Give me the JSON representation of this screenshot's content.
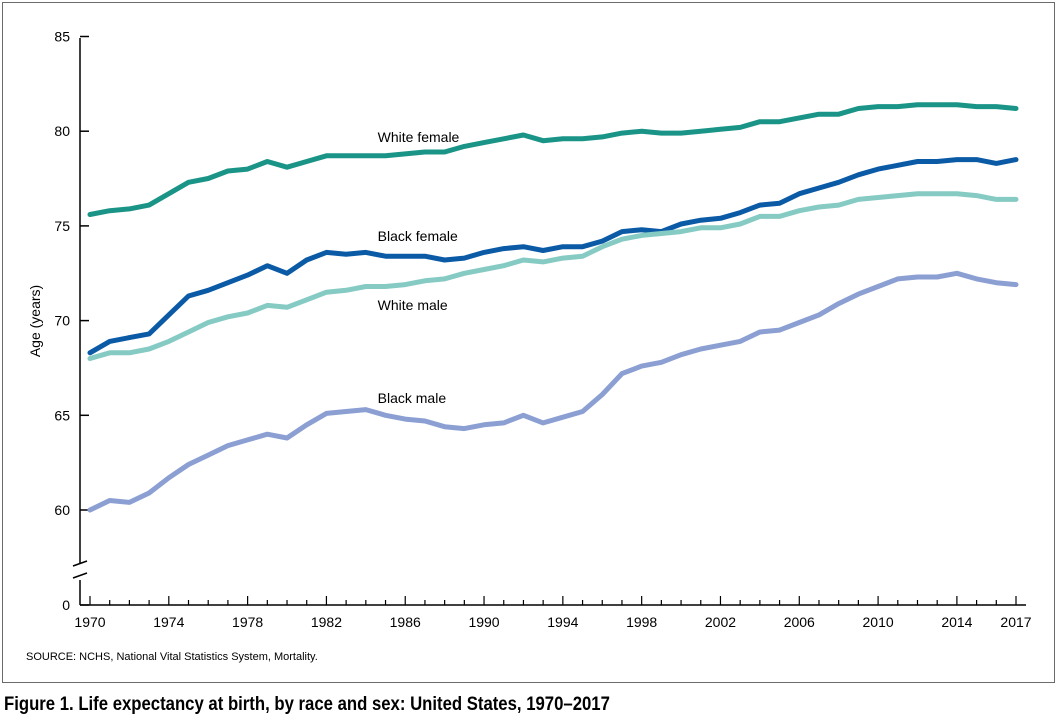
{
  "source_note": "SOURCE: NCHS, National Vital Statistics System, Mortality.",
  "caption": "Figure 1. Life expectancy at birth, by race and sex: United States, 1970–2017",
  "chart_data": {
    "type": "line",
    "title": "",
    "xlabel": "",
    "ylabel": "Age (years)",
    "x": [
      1970,
      1971,
      1972,
      1973,
      1974,
      1975,
      1976,
      1977,
      1978,
      1979,
      1980,
      1981,
      1982,
      1983,
      1984,
      1985,
      1986,
      1987,
      1988,
      1989,
      1990,
      1991,
      1992,
      1993,
      1994,
      1995,
      1996,
      1997,
      1998,
      1999,
      2000,
      2001,
      2002,
      2003,
      2004,
      2005,
      2006,
      2007,
      2008,
      2009,
      2010,
      2011,
      2012,
      2013,
      2014,
      2015,
      2016,
      2017
    ],
    "xticks": [
      "1970",
      "1974",
      "1978",
      "1982",
      "1986",
      "1990",
      "1994",
      "1998",
      "2002",
      "2006",
      "2010",
      "2014",
      "2017"
    ],
    "yticks": [
      "0",
      "60",
      "65",
      "70",
      "75",
      "80",
      "85"
    ],
    "ylim": [
      58.5,
      85
    ],
    "axis_break": true,
    "grid": false,
    "legend": "none (direct labels)",
    "series": [
      {
        "name": "White female",
        "color": "#1a9487",
        "values": [
          75.6,
          75.8,
          75.9,
          76.1,
          76.7,
          77.3,
          77.5,
          77.9,
          78.0,
          78.4,
          78.1,
          78.4,
          78.7,
          78.7,
          78.7,
          78.7,
          78.8,
          78.9,
          78.9,
          79.2,
          79.4,
          79.6,
          79.8,
          79.5,
          79.6,
          79.6,
          79.7,
          79.9,
          80.0,
          79.9,
          79.9,
          80.0,
          80.1,
          80.2,
          80.5,
          80.5,
          80.7,
          80.9,
          80.9,
          81.2,
          81.3,
          81.3,
          81.4,
          81.4,
          81.4,
          81.3,
          81.3,
          81.2
        ]
      },
      {
        "name": "Black female",
        "color": "#0b5aa6",
        "values": [
          68.3,
          68.9,
          69.1,
          69.3,
          70.3,
          71.3,
          71.6,
          72.0,
          72.4,
          72.9,
          72.5,
          73.2,
          73.6,
          73.5,
          73.6,
          73.4,
          73.4,
          73.4,
          73.2,
          73.3,
          73.6,
          73.8,
          73.9,
          73.7,
          73.9,
          73.9,
          74.2,
          74.7,
          74.8,
          74.7,
          75.1,
          75.3,
          75.4,
          75.7,
          76.1,
          76.2,
          76.7,
          77.0,
          77.3,
          77.7,
          78.0,
          78.2,
          78.4,
          78.4,
          78.5,
          78.5,
          78.3,
          78.5
        ]
      },
      {
        "name": "White male",
        "color": "#86cac4",
        "values": [
          68.0,
          68.3,
          68.3,
          68.5,
          68.9,
          69.4,
          69.9,
          70.2,
          70.4,
          70.8,
          70.7,
          71.1,
          71.5,
          71.6,
          71.8,
          71.8,
          71.9,
          72.1,
          72.2,
          72.5,
          72.7,
          72.9,
          73.2,
          73.1,
          73.3,
          73.4,
          73.9,
          74.3,
          74.5,
          74.6,
          74.7,
          74.9,
          74.9,
          75.1,
          75.5,
          75.5,
          75.8,
          76.0,
          76.1,
          76.4,
          76.5,
          76.6,
          76.7,
          76.7,
          76.7,
          76.6,
          76.4,
          76.4
        ]
      },
      {
        "name": "Black male",
        "color": "#8b9fd3",
        "values": [
          60.0,
          60.5,
          60.4,
          60.9,
          61.7,
          62.4,
          62.9,
          63.4,
          63.7,
          64.0,
          63.8,
          64.5,
          65.1,
          65.2,
          65.3,
          65.0,
          64.8,
          64.7,
          64.4,
          64.3,
          64.5,
          64.6,
          65.0,
          64.6,
          64.9,
          65.2,
          66.1,
          67.2,
          67.6,
          67.8,
          68.2,
          68.5,
          68.7,
          68.9,
          69.4,
          69.5,
          69.9,
          70.3,
          70.9,
          71.4,
          71.8,
          72.2,
          72.3,
          72.3,
          72.5,
          72.2,
          72.0,
          71.9
        ]
      }
    ]
  }
}
